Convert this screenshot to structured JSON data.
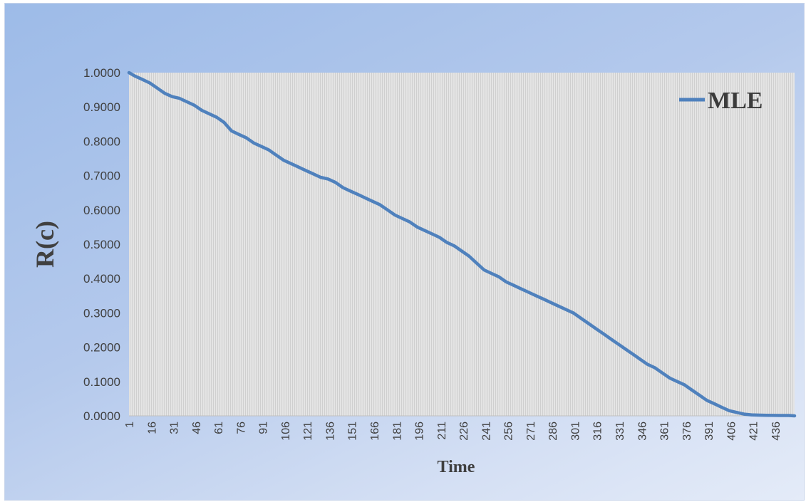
{
  "chart_data": {
    "type": "line",
    "xlabel": "Time",
    "ylabel": "R(c)",
    "x_start": 1,
    "x_end": 449,
    "x_tick_labels": [
      "1",
      "16",
      "31",
      "46",
      "61",
      "76",
      "91",
      "106",
      "121",
      "136",
      "151",
      "166",
      "181",
      "196",
      "211",
      "226",
      "241",
      "256",
      "271",
      "286",
      "301",
      "316",
      "331",
      "346",
      "361",
      "376",
      "391",
      "406",
      "421",
      "436"
    ],
    "y_tick_labels": [
      "0.0000",
      "0.1000",
      "0.2000",
      "0.3000",
      "0.4000",
      "0.5000",
      "0.6000",
      "0.7000",
      "0.8000",
      "0.9000",
      "1.0000"
    ],
    "ylim": [
      0,
      1
    ],
    "grid": "vertical hatch",
    "legend_position": "top-right",
    "series": [
      {
        "name": "MLE",
        "color": "#4f81bd",
        "x": [
          1,
          5,
          10,
          15,
          20,
          25,
          30,
          35,
          40,
          45,
          50,
          55,
          60,
          65,
          70,
          75,
          80,
          85,
          90,
          95,
          100,
          105,
          110,
          115,
          120,
          125,
          130,
          135,
          140,
          145,
          150,
          155,
          160,
          165,
          170,
          175,
          180,
          185,
          190,
          195,
          200,
          205,
          210,
          215,
          220,
          225,
          230,
          235,
          240,
          245,
          250,
          255,
          260,
          265,
          270,
          275,
          280,
          285,
          290,
          295,
          300,
          305,
          310,
          315,
          320,
          325,
          330,
          335,
          340,
          345,
          350,
          355,
          360,
          365,
          370,
          375,
          380,
          385,
          390,
          395,
          400,
          405,
          410,
          415,
          420,
          425,
          430,
          435,
          440,
          445,
          449
        ],
        "values": [
          1.0,
          0.99,
          0.98,
          0.97,
          0.955,
          0.94,
          0.93,
          0.925,
          0.915,
          0.905,
          0.89,
          0.88,
          0.87,
          0.855,
          0.83,
          0.82,
          0.81,
          0.795,
          0.785,
          0.775,
          0.76,
          0.745,
          0.735,
          0.725,
          0.715,
          0.705,
          0.695,
          0.69,
          0.68,
          0.665,
          0.655,
          0.645,
          0.635,
          0.625,
          0.615,
          0.6,
          0.585,
          0.575,
          0.565,
          0.55,
          0.54,
          0.53,
          0.52,
          0.505,
          0.495,
          0.48,
          0.465,
          0.445,
          0.425,
          0.415,
          0.405,
          0.39,
          0.38,
          0.37,
          0.36,
          0.35,
          0.34,
          0.33,
          0.32,
          0.31,
          0.3,
          0.285,
          0.27,
          0.255,
          0.24,
          0.225,
          0.21,
          0.195,
          0.18,
          0.165,
          0.15,
          0.14,
          0.125,
          0.11,
          0.1,
          0.09,
          0.075,
          0.06,
          0.045,
          0.035,
          0.025,
          0.015,
          0.01,
          0.005,
          0.003,
          0.002,
          0.0015,
          0.0012,
          0.001,
          0.001,
          0.0
        ]
      }
    ]
  }
}
